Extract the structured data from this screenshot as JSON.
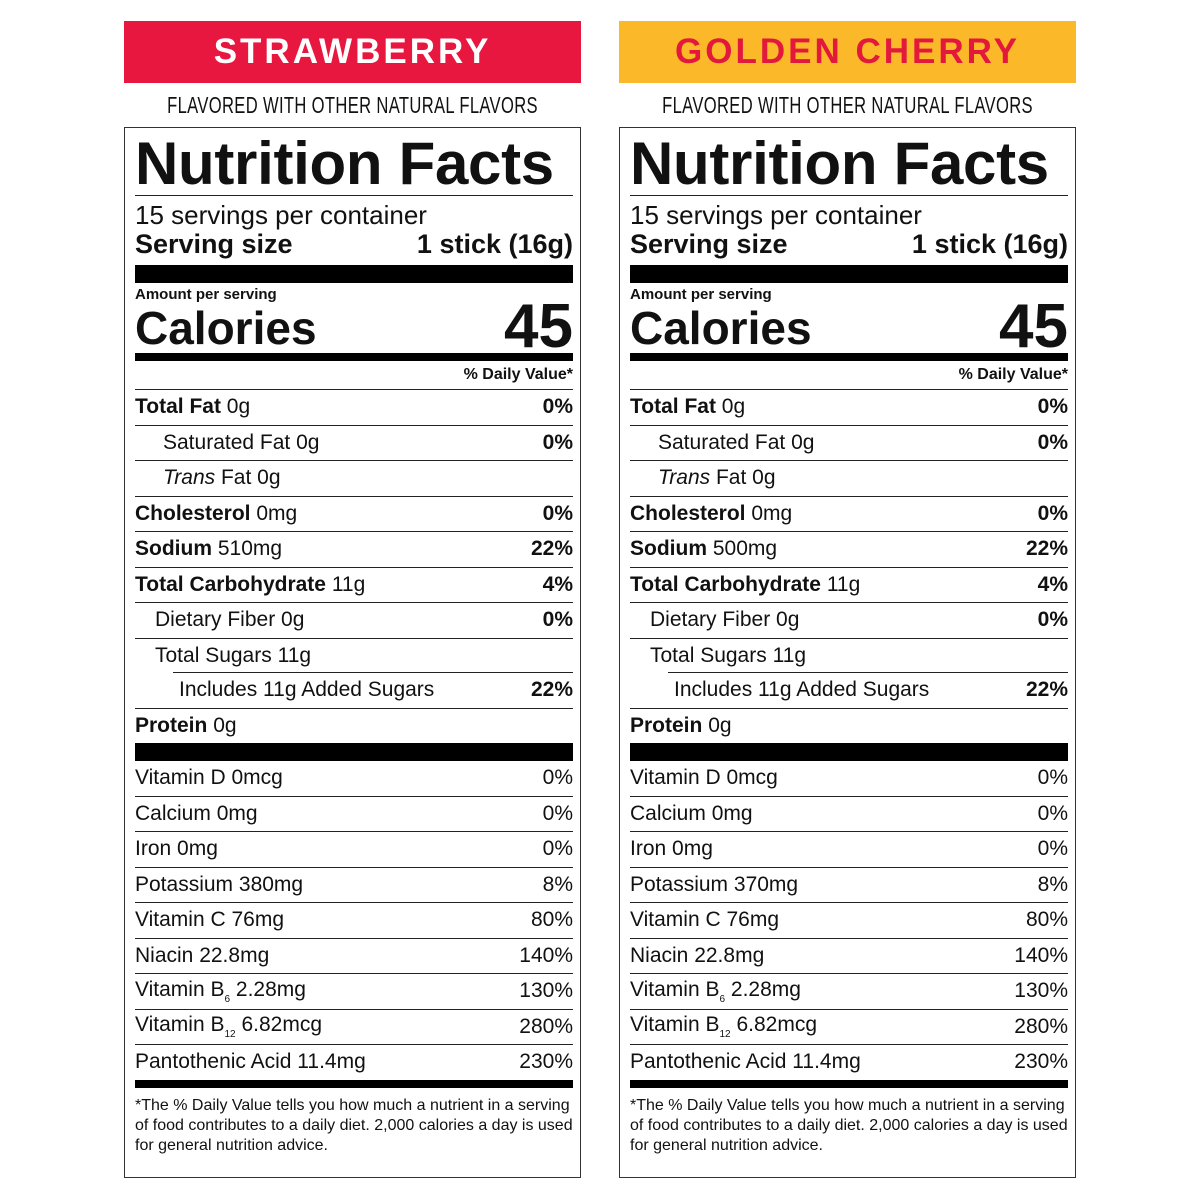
{
  "panels": [
    {
      "flavor": "STRAWBERRY",
      "band_color": "#E8173F",
      "flavor_text_color": "#FFFFFF",
      "subtitle": "FLAVORED WITH OTHER NATURAL FLAVORS",
      "title": "Nutrition Facts",
      "servings": "15 servings per container",
      "serving_size_label": "Serving size",
      "serving_size_value": "1 stick (16g)",
      "amount_per_serving": "Amount per serving",
      "calories_label": "Calories",
      "calories_value": "45",
      "dv_header": "% Daily Value*",
      "nutrients": [
        {
          "name": "Total Fat",
          "amount": "0g",
          "dv": "0%",
          "bold": true,
          "indent": 0
        },
        {
          "name": "Saturated Fat",
          "amount": "0g",
          "dv": "0%",
          "bold": false,
          "indent": 1
        },
        {
          "italic": "Trans",
          "name": "Fat",
          "amount": "0g",
          "dv": "",
          "bold": false,
          "indent": 1
        },
        {
          "name": "Cholesterol",
          "amount": "0mg",
          "dv": "0%",
          "bold": true,
          "indent": 0
        },
        {
          "name": "Sodium",
          "amount": "510mg",
          "dv": "22%",
          "bold": true,
          "indent": 0
        },
        {
          "name": "Total Carbohydrate",
          "amount": "11g",
          "dv": "4%",
          "bold": true,
          "indent": 0
        },
        {
          "name": "Dietary Fiber",
          "amount": "0g",
          "dv": "0%",
          "bold": false,
          "indent": 2
        },
        {
          "name": "Total Sugars",
          "amount": "11g",
          "dv": "",
          "bold": false,
          "indent": 2
        },
        {
          "name": "Includes 11g Added Sugars",
          "amount": "",
          "dv": "22%",
          "bold": false,
          "indent": 3
        },
        {
          "name": "Protein",
          "amount": "0g",
          "dv": "",
          "bold": true,
          "indent": 0
        }
      ],
      "vitamins": [
        {
          "name": "Vitamin D",
          "amount": "0mcg",
          "dv": "0%"
        },
        {
          "name": "Calcium",
          "amount": "0mg",
          "dv": "0%"
        },
        {
          "name": "Iron",
          "amount": "0mg",
          "dv": "0%"
        },
        {
          "name": "Potassium",
          "amount": "380mg",
          "dv": "8%"
        },
        {
          "name": "Vitamin C",
          "amount": "76mg",
          "dv": "80%"
        },
        {
          "name": "Niacin",
          "amount": "22.8mg",
          "dv": "140%"
        },
        {
          "name": "Vitamin B",
          "sub": "6",
          "amount": "2.28mg",
          "dv": "130%"
        },
        {
          "name": "Vitamin B",
          "sub": "12",
          "amount": "6.82mcg",
          "dv": "280%"
        },
        {
          "name": "Pantothenic Acid",
          "amount": "11.4mg",
          "dv": "230%"
        }
      ],
      "footnote": "*The % Daily Value tells you how much a nutrient in a serving of food contributes to a daily diet. 2,000 calories a day is used for general nutrition advice."
    },
    {
      "flavor": "GOLDEN CHERRY",
      "band_color": "#FBB829",
      "flavor_text_color": "#E2183C",
      "subtitle": "FLAVORED WITH OTHER NATURAL FLAVORS",
      "title": "Nutrition Facts",
      "servings": "15 servings per container",
      "serving_size_label": "Serving size",
      "serving_size_value": "1 stick (16g)",
      "amount_per_serving": "Amount per serving",
      "calories_label": "Calories",
      "calories_value": "45",
      "dv_header": "% Daily Value*",
      "nutrients": [
        {
          "name": "Total Fat",
          "amount": "0g",
          "dv": "0%",
          "bold": true,
          "indent": 0
        },
        {
          "name": "Saturated Fat",
          "amount": "0g",
          "dv": "0%",
          "bold": false,
          "indent": 1
        },
        {
          "italic": "Trans",
          "name": "Fat",
          "amount": "0g",
          "dv": "",
          "bold": false,
          "indent": 1
        },
        {
          "name": "Cholesterol",
          "amount": "0mg",
          "dv": "0%",
          "bold": true,
          "indent": 0
        },
        {
          "name": "Sodium",
          "amount": "500mg",
          "dv": "22%",
          "bold": true,
          "indent": 0
        },
        {
          "name": "Total Carbohydrate",
          "amount": "11g",
          "dv": "4%",
          "bold": true,
          "indent": 0
        },
        {
          "name": "Dietary Fiber",
          "amount": "0g",
          "dv": "0%",
          "bold": false,
          "indent": 2
        },
        {
          "name": "Total Sugars",
          "amount": "11g",
          "dv": "",
          "bold": false,
          "indent": 2
        },
        {
          "name": "Includes 11g Added Sugars",
          "amount": "",
          "dv": "22%",
          "bold": false,
          "indent": 3
        },
        {
          "name": "Protein",
          "amount": "0g",
          "dv": "",
          "bold": true,
          "indent": 0
        }
      ],
      "vitamins": [
        {
          "name": "Vitamin D",
          "amount": "0mcg",
          "dv": "0%"
        },
        {
          "name": "Calcium",
          "amount": "0mg",
          "dv": "0%"
        },
        {
          "name": "Iron",
          "amount": "0mg",
          "dv": "0%"
        },
        {
          "name": "Potassium",
          "amount": "370mg",
          "dv": "8%"
        },
        {
          "name": "Vitamin C",
          "amount": "76mg",
          "dv": "80%"
        },
        {
          "name": "Niacin",
          "amount": "22.8mg",
          "dv": "140%"
        },
        {
          "name": "Vitamin B",
          "sub": "6",
          "amount": "2.28mg",
          "dv": "130%"
        },
        {
          "name": "Vitamin B",
          "sub": "12",
          "amount": "6.82mcg",
          "dv": "280%"
        },
        {
          "name": "Pantothenic Acid",
          "amount": "11.4mg",
          "dv": "230%"
        }
      ],
      "footnote": "*The % Daily Value tells you how much a nutrient in a serving of food contributes to a daily diet. 2,000 calories a day is used for general nutrition advice."
    }
  ]
}
